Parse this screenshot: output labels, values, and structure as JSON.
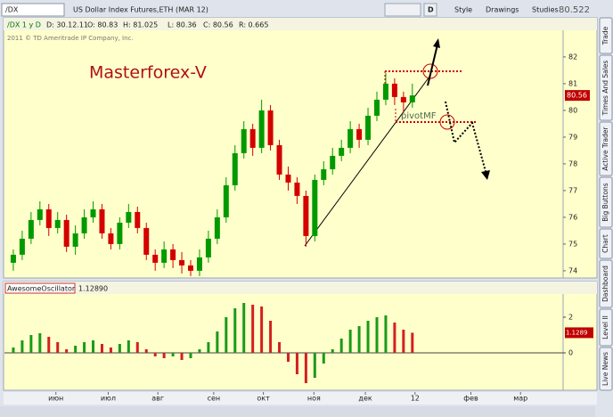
{
  "toolbar": {
    "symbol": "/DX",
    "description": "US Dollar Index Futures,ETH (MAR 12)",
    "period": "D",
    "style": "Style",
    "drawings": "Drawings",
    "studies": "Studies",
    "price": "80.522"
  },
  "info": {
    "name": "/DX 1 y D",
    "date": "D: 30.12.11",
    "open": "O: 80.83",
    "high": "H: 81.025",
    "low": "L: 80.36",
    "close": "C: 80.56",
    "range": "R: 0.665",
    "copyright": "2011 © TD Ameritrade IP Company, Inc."
  },
  "annotations": {
    "title": "Masterforex-V",
    "pivot": "pivotMF"
  },
  "chart_data": [
    {
      "type": "candlestick",
      "up_color": "#009a00",
      "down_color": "#d40000",
      "x": [
        0,
        1,
        2,
        3,
        4,
        5,
        6,
        7,
        8,
        9,
        10,
        11,
        12,
        13,
        14,
        15,
        16,
        17,
        18,
        19,
        20,
        21,
        22,
        23,
        24,
        25,
        26,
        27,
        28,
        29,
        30,
        31,
        32,
        33,
        34,
        35,
        36,
        37,
        38,
        39,
        40,
        41,
        42,
        43,
        44,
        45
      ],
      "open": [
        74.3,
        74.6,
        75.2,
        75.9,
        76.3,
        75.6,
        75.9,
        74.9,
        75.4,
        76.0,
        76.3,
        75.4,
        75.0,
        75.8,
        76.2,
        75.6,
        74.6,
        74.3,
        74.8,
        74.4,
        74.2,
        74.0,
        74.5,
        75.2,
        76.0,
        77.2,
        78.4,
        79.3,
        78.6,
        80.0,
        78.7,
        77.6,
        77.3,
        76.8,
        75.3,
        77.4,
        77.8,
        78.3,
        78.6,
        79.3,
        78.9,
        79.8,
        80.4,
        81.0,
        80.5,
        80.3
      ],
      "high": [
        74.8,
        75.5,
        76.2,
        76.6,
        76.5,
        76.2,
        76.1,
        75.7,
        76.3,
        76.6,
        76.5,
        75.6,
        76.0,
        76.5,
        76.4,
        75.8,
        74.8,
        75.1,
        75.0,
        74.7,
        74.4,
        74.8,
        75.5,
        76.3,
        77.5,
        78.7,
        79.6,
        79.5,
        80.4,
        80.2,
        78.9,
        77.9,
        77.5,
        77.0,
        77.6,
        78.1,
        78.6,
        78.9,
        79.6,
        79.5,
        80.1,
        80.7,
        81.4,
        81.2,
        80.7,
        81.0
      ],
      "low": [
        74.0,
        74.4,
        75.0,
        75.7,
        75.3,
        75.4,
        74.7,
        74.6,
        75.2,
        75.8,
        75.2,
        74.8,
        74.8,
        75.6,
        75.4,
        74.4,
        74.0,
        74.1,
        74.1,
        73.9,
        73.8,
        73.8,
        74.3,
        75.0,
        75.8,
        77.0,
        78.2,
        78.3,
        78.4,
        78.5,
        77.4,
        77.0,
        76.5,
        74.9,
        75.1,
        77.2,
        77.6,
        78.1,
        78.4,
        78.6,
        78.7,
        79.6,
        80.2,
        80.2,
        79.9,
        80.1
      ],
      "close": [
        74.6,
        75.2,
        75.9,
        76.3,
        75.6,
        75.9,
        74.9,
        75.4,
        76.0,
        76.3,
        75.4,
        75.0,
        75.8,
        76.2,
        75.6,
        74.6,
        74.3,
        74.8,
        74.4,
        74.2,
        74.0,
        74.5,
        75.2,
        76.0,
        77.2,
        78.4,
        79.3,
        78.6,
        80.0,
        78.7,
        77.6,
        77.3,
        76.8,
        75.3,
        77.4,
        77.8,
        78.3,
        78.6,
        79.3,
        78.9,
        79.8,
        80.4,
        81.0,
        80.5,
        80.3,
        80.56
      ],
      "xlim": [
        -1,
        62
      ],
      "ylim": [
        73.73,
        82.93
      ],
      "yticks": [
        74,
        75,
        76,
        77,
        78,
        79,
        80,
        81,
        82
      ]
    },
    {
      "type": "bar",
      "name": "AwesomeOscillator",
      "param": 0,
      "up_color": "#1a9a1a",
      "down_color": "#d42020",
      "x": [
        0,
        1,
        2,
        3,
        4,
        5,
        6,
        7,
        8,
        9,
        10,
        11,
        12,
        13,
        14,
        15,
        16,
        17,
        18,
        19,
        20,
        21,
        22,
        23,
        24,
        25,
        26,
        27,
        28,
        29,
        30,
        31,
        32,
        33,
        34,
        35,
        36,
        37,
        38,
        39,
        40,
        41,
        42,
        43,
        44,
        45
      ],
      "values": [
        0.3,
        0.7,
        1.0,
        1.1,
        0.9,
        0.6,
        0.2,
        0.4,
        0.6,
        0.7,
        0.5,
        0.3,
        0.5,
        0.7,
        0.6,
        0.2,
        -0.2,
        -0.3,
        -0.2,
        -0.4,
        -0.3,
        0.2,
        0.6,
        1.2,
        2.0,
        2.5,
        2.8,
        2.7,
        2.6,
        1.8,
        0.6,
        -0.5,
        -1.2,
        -1.7,
        -1.4,
        -0.6,
        0.2,
        0.8,
        1.3,
        1.5,
        1.8,
        2.0,
        2.1,
        1.7,
        1.3,
        1.1289
      ],
      "xlim": [
        -1,
        62
      ],
      "ylim": [
        -2,
        3.2
      ],
      "yticks": [
        0,
        2
      ],
      "xticks": [
        {
          "value": 4.8,
          "label": "июн"
        },
        {
          "value": 10.7,
          "label": "июл"
        },
        {
          "value": 16.3,
          "label": "авг"
        },
        {
          "value": 22.6,
          "label": "сен"
        },
        {
          "value": 28.2,
          "label": "окт"
        },
        {
          "value": 33.9,
          "label": "ноя"
        },
        {
          "value": 39.7,
          "label": "дек"
        },
        {
          "value": 45.3,
          "label": "12"
        },
        {
          "value": 51.6,
          "label": "фев"
        },
        {
          "value": 57.2,
          "label": "мар"
        }
      ]
    }
  ],
  "sidebar": [
    "Trade",
    "Times And Sales",
    "Active Trader",
    "Big Buttons",
    "Chart",
    "Dashboard",
    "Level II",
    "Live News"
  ]
}
